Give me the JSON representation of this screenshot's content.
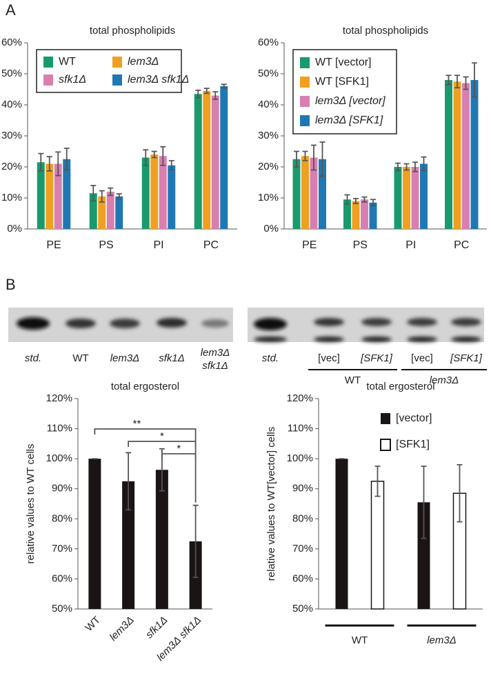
{
  "panels": [
    "A",
    "B"
  ],
  "chart_data": [
    {
      "type": "bar",
      "title": "total phospholipids",
      "categories": [
        "PE",
        "PS",
        "PI",
        "PC"
      ],
      "series": [
        {
          "name": "WT",
          "color": "#1a9a6c",
          "values": [
            21.5,
            11.5,
            23,
            43.5
          ],
          "errors": [
            2.8,
            2.5,
            2.5,
            1.2
          ]
        },
        {
          "name": "lem3Δ",
          "color": "#f0a020",
          "values": [
            21,
            10.5,
            24,
            44.5
          ],
          "errors": [
            2.3,
            1.8,
            1,
            0.8
          ]
        },
        {
          "name": "sfk1Δ",
          "color": "#d97fb0",
          "values": [
            21,
            12,
            23.5,
            43
          ],
          "errors": [
            3.8,
            1.2,
            3,
            1.2
          ]
        },
        {
          "name": "lem3Δ sfk1Δ",
          "color": "#1f78b4",
          "values": [
            22.5,
            10.5,
            20.5,
            46
          ],
          "errors": [
            3.5,
            0.8,
            1.5,
            0.6
          ]
        }
      ],
      "ylim": [
        0,
        60
      ],
      "yticks": [
        {
          "value": 0,
          "label": "0%"
        },
        {
          "value": 10,
          "label": "10%"
        },
        {
          "value": 20,
          "label": "20%"
        },
        {
          "value": 30,
          "label": "30%"
        },
        {
          "value": 40,
          "label": "40%"
        },
        {
          "value": 50,
          "label": "50%"
        },
        {
          "value": 60,
          "label": "60%"
        }
      ],
      "legend": "upper left",
      "legend_columns": 2,
      "legend_frame": true
    },
    {
      "type": "bar",
      "title": "total phospholipids",
      "categories": [
        "PE",
        "PS",
        "PI",
        "PC"
      ],
      "series": [
        {
          "name": "WT [vector]",
          "color": "#1a9a6c",
          "values": [
            22.5,
            9.5,
            20,
            48
          ],
          "errors": [
            2.5,
            1.5,
            1.2,
            1.5
          ]
        },
        {
          "name": "WT [SFK1]",
          "color": "#f0a020",
          "values": [
            23.5,
            9,
            20,
            47.5
          ],
          "errors": [
            1.5,
            0.8,
            1,
            2
          ]
        },
        {
          "name": "lem3Δ [vector]",
          "color": "#d97fb0",
          "values": [
            23,
            9.5,
            20,
            47
          ],
          "errors": [
            4,
            0.8,
            1.5,
            2
          ]
        },
        {
          "name": "lem3Δ [SFK1]",
          "color": "#1f78b4",
          "values": [
            22.5,
            8.5,
            21,
            48
          ],
          "errors": [
            5.5,
            1,
            2.2,
            5.5
          ]
        }
      ],
      "ylim": [
        0,
        60
      ],
      "yticks": [
        {
          "value": 0,
          "label": "0%"
        },
        {
          "value": 10,
          "label": "10%"
        },
        {
          "value": 20,
          "label": "20%"
        },
        {
          "value": 30,
          "label": "30%"
        },
        {
          "value": 40,
          "label": "40%"
        },
        {
          "value": 50,
          "label": "50%"
        },
        {
          "value": 60,
          "label": "60%"
        }
      ],
      "legend": "upper left",
      "legend_columns": 1,
      "legend_frame": true
    },
    {
      "type": "bar",
      "title": "total ergosterol",
      "ylabel": "relative values to WT cells",
      "categories": [
        "WT",
        "lem3Δ",
        "sfk1Δ",
        "lem3Δ sfk1Δ"
      ],
      "series": [
        {
          "color": "#1a1414",
          "values": [
            100,
            92.5,
            96.3,
            72.5
          ],
          "errors": [
            0,
            9.5,
            7,
            12
          ]
        }
      ],
      "ylim": [
        50,
        120
      ],
      "yticks": [
        {
          "value": 50,
          "label": "50%"
        },
        {
          "value": 60,
          "label": "60%"
        },
        {
          "value": 70,
          "label": "70%"
        },
        {
          "value": 80,
          "label": "80%"
        },
        {
          "value": 90,
          "label": "90%"
        },
        {
          "value": 100,
          "label": "100%"
        },
        {
          "value": 110,
          "label": "110%"
        },
        {
          "value": 120,
          "label": "120%"
        }
      ],
      "annotations": [
        "**",
        "*",
        "*"
      ],
      "rotate_xticks": true
    },
    {
      "type": "bar",
      "title": "total ergosterol",
      "ylabel": "relative values to WT[vector] cells",
      "categories": [
        "WT",
        "lem3Δ"
      ],
      "series": [
        {
          "name": "[vector]",
          "color": "#1a1414",
          "values": [
            100,
            85.5
          ],
          "errors": [
            0,
            12
          ]
        },
        {
          "name": "[SFK1]",
          "color": "#ffffff",
          "edgecolor": "#1a1414",
          "values": [
            92.5,
            88.5
          ],
          "errors": [
            5,
            9.5
          ]
        }
      ],
      "ylim": [
        50,
        120
      ],
      "yticks": [
        {
          "value": 50,
          "label": "50%"
        },
        {
          "value": 60,
          "label": "60%"
        },
        {
          "value": 70,
          "label": "70%"
        },
        {
          "value": 80,
          "label": "80%"
        },
        {
          "value": 90,
          "label": "90%"
        },
        {
          "value": 100,
          "label": "100%"
        },
        {
          "value": 110,
          "label": "110%"
        },
        {
          "value": 120,
          "label": "120%"
        }
      ],
      "legend": "upper right",
      "legend_columns": 1,
      "legend_frame": false,
      "group_underline": true
    }
  ],
  "gel_left": {
    "lanes": [
      "std.",
      "WT",
      "lem3Δ",
      "sfk1Δ",
      [
        "lem3Δ",
        "sfk1Δ"
      ]
    ]
  },
  "gel_right": {
    "lanes": [
      "std.",
      "[vec]",
      "[SFK1]",
      "[vec]",
      "[SFK1]"
    ],
    "groups": [
      "WT",
      "lem3Δ"
    ]
  }
}
